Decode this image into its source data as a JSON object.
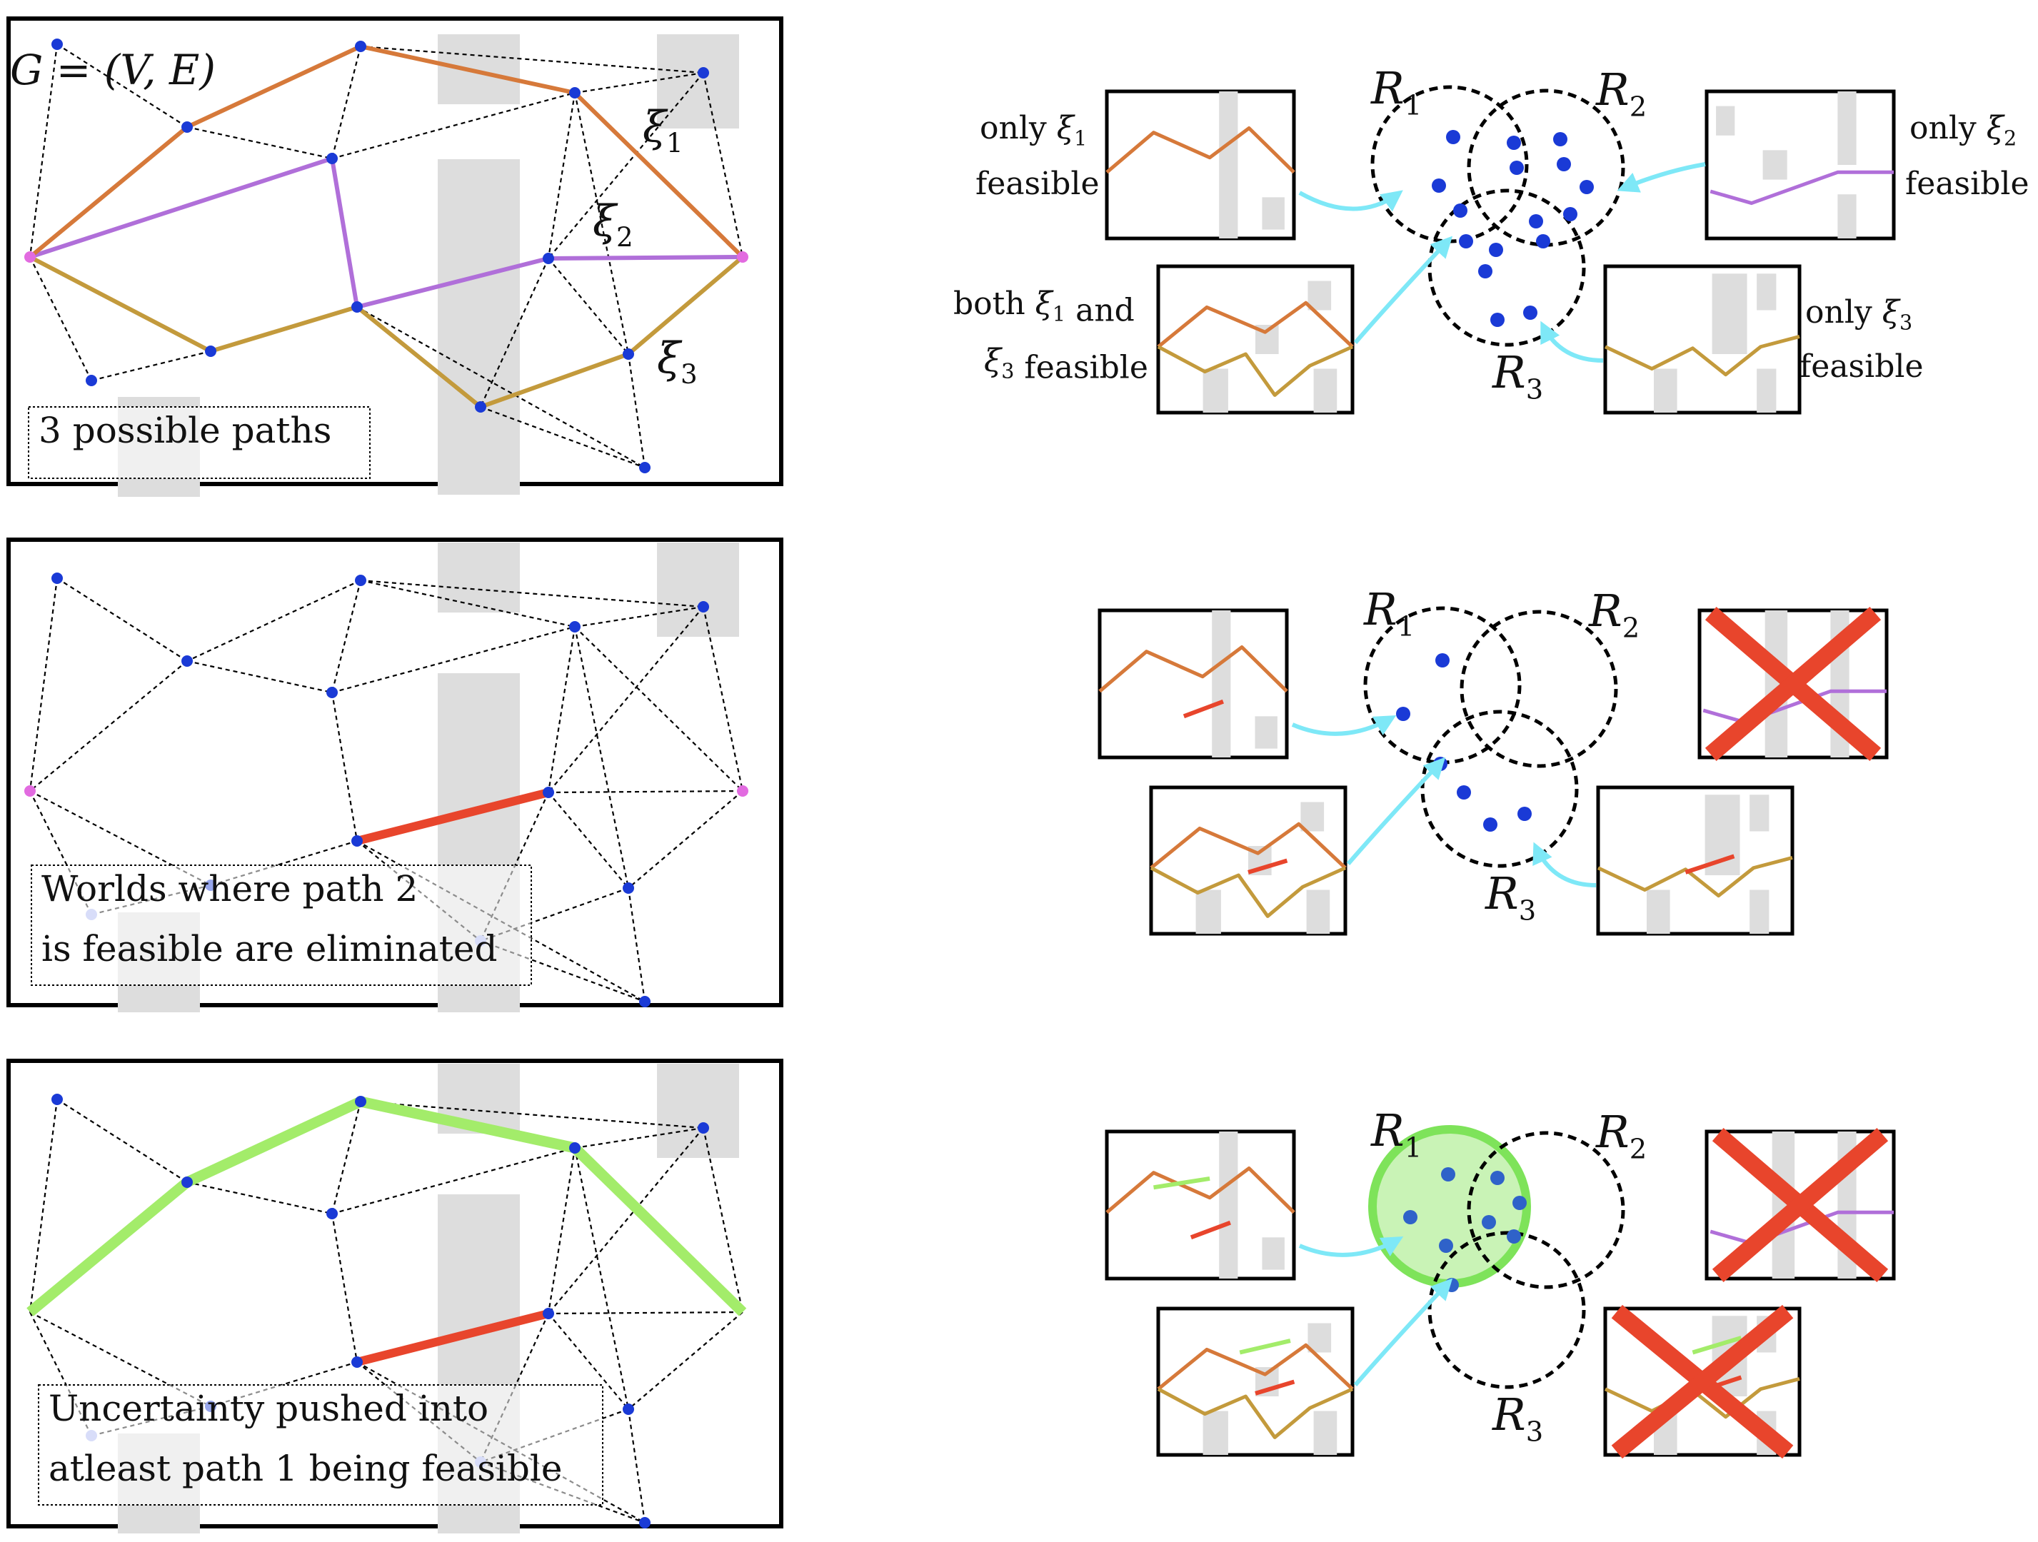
{
  "colors": {
    "path1": "#d6793a",
    "path2": "#b06fd9",
    "path3": "#c39a3c",
    "node": "#1a3ad6",
    "endpoint": "#e26be0",
    "obstacle": "#dddddd",
    "eliminated_edge": "#e8452c",
    "cross": "#e8452c",
    "arrow": "#7ee8f7",
    "highlight_path": "#a3ec6a",
    "highlight_region_fill": "#c9f3b6",
    "highlight_region_stroke": "#7ee35a",
    "faded_node": "#a9b4f2"
  },
  "panels": [
    {
      "id": "panel-1",
      "graph_label": "G = (V, E)",
      "path_labels": [
        "ξ1",
        "ξ2",
        "ξ3"
      ],
      "caption_lines": [
        "3 possible paths"
      ]
    },
    {
      "id": "panel-2",
      "caption_lines": [
        "Worlds where path 2",
        "is feasible are eliminated"
      ]
    },
    {
      "id": "panel-3",
      "caption_lines": [
        "Uncertainty pushed into",
        "atleast path 1 being feasible"
      ]
    }
  ],
  "venn": {
    "region_labels": [
      "R1",
      "R2",
      "R3"
    ],
    "row1_annotations": {
      "only_xi1": [
        "only ξ1",
        "feasible"
      ],
      "only_xi2": [
        "only ξ2",
        "feasible"
      ],
      "both": [
        "both ξ1 and",
        "ξ3 feasible"
      ],
      "only_xi3": [
        "only ξ3",
        "feasible"
      ]
    }
  }
}
